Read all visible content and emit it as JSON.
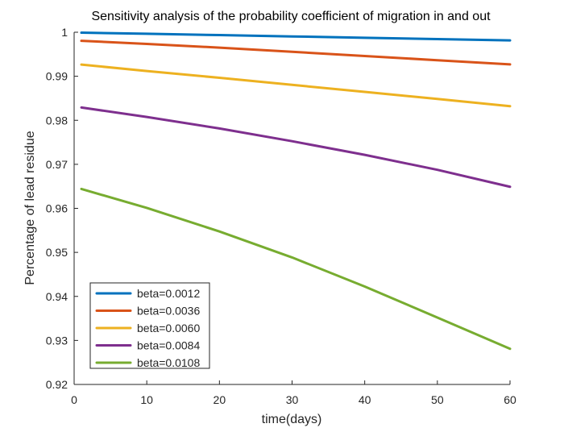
{
  "chart_data": {
    "type": "line",
    "title": "Sensitivity analysis of the probability coefficient of migration in and out",
    "xlabel": "time(days)",
    "ylabel": "Percentage of lead residue",
    "xlim": [
      0,
      60
    ],
    "ylim": [
      0.92,
      1.0
    ],
    "xticks": [
      0,
      10,
      20,
      30,
      40,
      50,
      60
    ],
    "yticks": [
      0.92,
      0.93,
      0.94,
      0.95,
      0.96,
      0.97,
      0.98,
      0.99,
      1.0
    ],
    "ytick_labels": [
      "0.92",
      "0.93",
      "0.94",
      "0.95",
      "0.96",
      "0.97",
      "0.98",
      "0.99",
      "1"
    ],
    "grid": false,
    "legend_position": "bottom-left",
    "x": [
      1,
      10,
      20,
      30,
      40,
      50,
      60
    ],
    "series": [
      {
        "name": "beta=0.0012",
        "color": "#0072BD",
        "values": [
          0.9999,
          0.99965,
          0.99935,
          0.99905,
          0.99875,
          0.99845,
          0.99815
        ]
      },
      {
        "name": "beta=0.0036",
        "color": "#D95319",
        "values": [
          0.99805,
          0.99735,
          0.9965,
          0.99555,
          0.9946,
          0.99365,
          0.9927
        ]
      },
      {
        "name": "beta=0.0060",
        "color": "#EDB120",
        "values": [
          0.99265,
          0.9912,
          0.98965,
          0.98805,
          0.98645,
          0.98485,
          0.9832
        ]
      },
      {
        "name": "beta=0.0084",
        "color": "#7E2F8E",
        "values": [
          0.9829,
          0.98075,
          0.97815,
          0.97525,
          0.97215,
          0.96875,
          0.9649
        ]
      },
      {
        "name": "beta=0.0108",
        "color": "#77AC30",
        "values": [
          0.9644,
          0.9601,
          0.95475,
          0.94885,
          0.94225,
          0.9352,
          0.9281
        ]
      }
    ]
  }
}
